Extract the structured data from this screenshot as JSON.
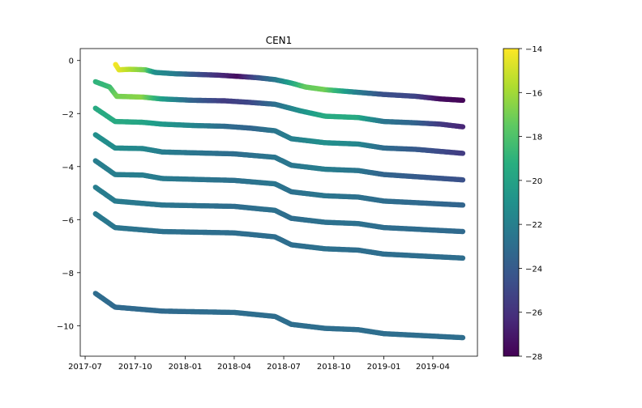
{
  "chart_data": {
    "type": "scatter",
    "title": "CEN1",
    "xlabel": "",
    "ylabel": "",
    "x_ticks": [
      "2017-07",
      "2017-10",
      "2018-01",
      "2018-04",
      "2018-07",
      "2018-10",
      "2019-01",
      "2019-04"
    ],
    "xlim": [
      "2017-06-22",
      "2019-06-22"
    ],
    "y_ticks": [
      0,
      -2,
      -4,
      -6,
      -8,
      -10
    ],
    "ylim": [
      -11.15,
      0.45
    ],
    "grid": false,
    "legend": "none",
    "colormap": "viridis",
    "colorbar": {
      "min": -28,
      "max": -14,
      "ticks": [
        -14,
        -16,
        -18,
        -20,
        -22,
        -24,
        -26,
        -28
      ]
    },
    "series": [
      {
        "values": [
          [
            "2017-08-26",
            -0.15,
            -14.2
          ],
          [
            "2017-09-01",
            -0.35,
            -14.5
          ],
          [
            "2017-09-20",
            -0.33,
            -15.5
          ],
          [
            "2017-10-20",
            -0.35,
            -17.0
          ],
          [
            "2017-11-07",
            -0.45,
            -21.0
          ],
          [
            "2017-12-15",
            -0.5,
            -22.0
          ],
          [
            "2018-01-15",
            -0.52,
            -24.0
          ],
          [
            "2018-03-01",
            -0.55,
            -26.0
          ],
          [
            "2018-04-10",
            -0.6,
            -27.5
          ],
          [
            "2018-05-15",
            -0.65,
            -24.5
          ],
          [
            "2018-06-15",
            -0.72,
            -22.5
          ],
          [
            "2018-07-15",
            -0.85,
            -20.0
          ],
          [
            "2018-08-10",
            -1.0,
            -17.5
          ],
          [
            "2018-09-15",
            -1.1,
            -17.0
          ],
          [
            "2018-11-15",
            -1.2,
            -22.0
          ],
          [
            "2019-01-01",
            -1.28,
            -24.5
          ],
          [
            "2019-03-01",
            -1.35,
            -25.0
          ],
          [
            "2019-04-15",
            -1.45,
            -27.5
          ],
          [
            "2019-05-26",
            -1.5,
            -27.8
          ]
        ]
      },
      {
        "values": [
          [
            "2017-07-20",
            -0.8,
            -19.0
          ],
          [
            "2017-08-15",
            -1.0,
            -18.5
          ],
          [
            "2017-08-28",
            -1.35,
            -17.0
          ],
          [
            "2017-10-15",
            -1.38,
            -16.5
          ],
          [
            "2017-11-20",
            -1.45,
            -20.0
          ],
          [
            "2018-01-15",
            -1.5,
            -23.5
          ],
          [
            "2018-03-15",
            -1.52,
            -25.5
          ],
          [
            "2018-05-01",
            -1.58,
            -25.0
          ],
          [
            "2018-06-15",
            -1.65,
            -23.0
          ],
          [
            "2018-08-01",
            -1.9,
            -21.0
          ],
          [
            "2018-09-15",
            -2.1,
            -19.5
          ],
          [
            "2018-11-15",
            -2.15,
            -19.5
          ],
          [
            "2019-01-01",
            -2.3,
            -22.5
          ],
          [
            "2019-03-01",
            -2.35,
            -23.5
          ],
          [
            "2019-04-15",
            -2.4,
            -25.5
          ],
          [
            "2019-05-26",
            -2.5,
            -26.5
          ]
        ]
      },
      {
        "values": [
          [
            "2017-07-20",
            -1.8,
            -19.5
          ],
          [
            "2017-08-25",
            -2.3,
            -19.5
          ],
          [
            "2017-10-15",
            -2.33,
            -19.8
          ],
          [
            "2017-11-20",
            -2.4,
            -20.5
          ],
          [
            "2018-01-15",
            -2.45,
            -21.5
          ],
          [
            "2018-03-15",
            -2.48,
            -23.0
          ],
          [
            "2018-05-01",
            -2.55,
            -23.5
          ],
          [
            "2018-06-15",
            -2.65,
            -22.5
          ],
          [
            "2018-07-15",
            -2.95,
            -22.0
          ],
          [
            "2018-09-15",
            -3.1,
            -21.0
          ],
          [
            "2018-11-15",
            -3.15,
            -21.5
          ],
          [
            "2019-01-01",
            -3.3,
            -23.0
          ],
          [
            "2019-03-01",
            -3.35,
            -24.0
          ],
          [
            "2019-05-26",
            -3.5,
            -25.5
          ]
        ]
      },
      {
        "values": [
          [
            "2017-07-20",
            -2.8,
            -21.0
          ],
          [
            "2017-08-25",
            -3.3,
            -21.2
          ],
          [
            "2017-10-15",
            -3.32,
            -21.5
          ],
          [
            "2017-11-20",
            -3.45,
            -22.0
          ],
          [
            "2018-01-15",
            -3.48,
            -22.5
          ],
          [
            "2018-04-01",
            -3.52,
            -23.0
          ],
          [
            "2018-06-15",
            -3.65,
            -22.5
          ],
          [
            "2018-07-15",
            -3.95,
            -22.5
          ],
          [
            "2018-09-15",
            -4.1,
            -22.0
          ],
          [
            "2018-11-15",
            -4.15,
            -22.5
          ],
          [
            "2019-01-01",
            -4.3,
            -23.5
          ],
          [
            "2019-05-26",
            -4.5,
            -24.5
          ]
        ]
      },
      {
        "values": [
          [
            "2017-07-20",
            -3.78,
            -22.0
          ],
          [
            "2017-08-25",
            -4.3,
            -22.0
          ],
          [
            "2017-10-15",
            -4.32,
            -22.0
          ],
          [
            "2017-11-20",
            -4.45,
            -22.2
          ],
          [
            "2018-04-01",
            -4.52,
            -22.8
          ],
          [
            "2018-06-15",
            -4.65,
            -22.5
          ],
          [
            "2018-07-15",
            -4.95,
            -22.8
          ],
          [
            "2018-09-15",
            -5.1,
            -22.5
          ],
          [
            "2018-11-15",
            -5.15,
            -22.8
          ],
          [
            "2019-01-01",
            -5.3,
            -23.0
          ],
          [
            "2019-05-26",
            -5.45,
            -23.5
          ]
        ]
      },
      {
        "values": [
          [
            "2017-07-20",
            -4.78,
            -22.0
          ],
          [
            "2017-08-25",
            -5.3,
            -22.2
          ],
          [
            "2017-11-20",
            -5.45,
            -22.5
          ],
          [
            "2018-04-01",
            -5.5,
            -23.0
          ],
          [
            "2018-06-15",
            -5.65,
            -22.8
          ],
          [
            "2018-07-15",
            -5.95,
            -23.0
          ],
          [
            "2018-09-15",
            -6.1,
            -22.8
          ],
          [
            "2018-11-15",
            -6.15,
            -22.8
          ],
          [
            "2019-01-01",
            -6.3,
            -23.0
          ],
          [
            "2019-05-26",
            -6.45,
            -23.2
          ]
        ]
      },
      {
        "values": [
          [
            "2017-07-20",
            -5.78,
            -22.2
          ],
          [
            "2017-08-25",
            -6.3,
            -22.5
          ],
          [
            "2017-11-20",
            -6.45,
            -22.8
          ],
          [
            "2018-04-01",
            -6.5,
            -23.0
          ],
          [
            "2018-06-15",
            -6.65,
            -23.0
          ],
          [
            "2018-07-15",
            -6.95,
            -23.0
          ],
          [
            "2018-09-15",
            -7.1,
            -22.8
          ],
          [
            "2018-11-15",
            -7.15,
            -23.0
          ],
          [
            "2019-01-01",
            -7.3,
            -23.0
          ],
          [
            "2019-05-26",
            -7.45,
            -23.0
          ]
        ]
      },
      {
        "values": [
          [
            "2017-07-20",
            -8.78,
            -23.0
          ],
          [
            "2017-08-25",
            -9.3,
            -23.2
          ],
          [
            "2017-11-20",
            -9.45,
            -23.2
          ],
          [
            "2018-04-01",
            -9.5,
            -23.0
          ],
          [
            "2018-06-15",
            -9.65,
            -23.0
          ],
          [
            "2018-07-15",
            -9.95,
            -23.0
          ],
          [
            "2018-09-15",
            -10.1,
            -23.0
          ],
          [
            "2018-11-15",
            -10.15,
            -23.0
          ],
          [
            "2019-01-01",
            -10.3,
            -23.0
          ],
          [
            "2019-05-26",
            -10.45,
            -23.0
          ]
        ]
      }
    ]
  }
}
